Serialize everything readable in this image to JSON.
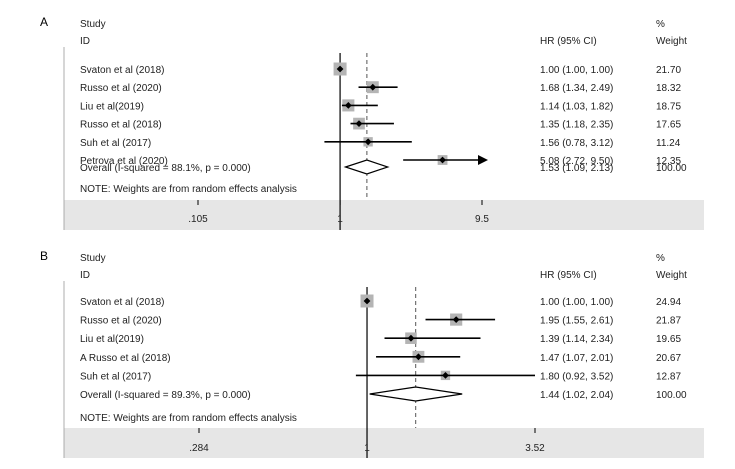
{
  "chart_data": [
    {
      "type": "forest",
      "panel_label": "A",
      "header": {
        "study": "Study",
        "id": "ID",
        "hr": "HR (95% CI)",
        "pct": "%",
        "weight": "Weight"
      },
      "x_scale": "log",
      "xlim": [
        0.105,
        9.5
      ],
      "xticks": [
        {
          "value": 0.105,
          "label": ".105"
        },
        {
          "value": 1,
          "label": "1"
        },
        {
          "value": 9.5,
          "label": "9.5"
        }
      ],
      "null_line": 1,
      "summary_line": 1.53,
      "studies": [
        {
          "name": "Svaton et al (2018)",
          "hr": 1.0,
          "lo": 1.0,
          "hi": 1.0,
          "ci_text": "1.00 (1.00, 1.00)",
          "weight": 21.7,
          "weight_text": "21.70",
          "arrow": false
        },
        {
          "name": "Russo et al (2020)",
          "hr": 1.68,
          "lo": 1.34,
          "hi": 2.49,
          "ci_text": "1.68 (1.34, 2.49)",
          "weight": 18.32,
          "weight_text": "18.32",
          "arrow": false
        },
        {
          "name": "Liu et al(2019)",
          "hr": 1.14,
          "lo": 1.03,
          "hi": 1.82,
          "ci_text": "1.14 (1.03, 1.82)",
          "weight": 18.75,
          "weight_text": "18.75",
          "arrow": false
        },
        {
          "name": "Russo et al (2018)",
          "hr": 1.35,
          "lo": 1.18,
          "hi": 2.35,
          "ci_text": "1.35 (1.18, 2.35)",
          "weight": 17.65,
          "weight_text": "17.65",
          "arrow": false
        },
        {
          "name": "Suh et al (2017)",
          "hr": 1.56,
          "lo": 0.78,
          "hi": 3.12,
          "ci_text": "1.56 (0.78, 3.12)",
          "weight": 11.24,
          "weight_text": "11.24",
          "arrow": false
        },
        {
          "name": "Petrova et al (2020)",
          "hr": 5.08,
          "lo": 2.72,
          "hi": 9.5,
          "ci_text": "5.08 (2.72, 9.50)",
          "weight": 12.35,
          "weight_text": "12.35",
          "arrow": true
        }
      ],
      "overall": {
        "label": "Overall  (I-squared = 88.1%, p = 0.000)",
        "hr": 1.53,
        "lo": 1.09,
        "hi": 2.13,
        "ci_text": "1.53 (1.09, 2.13)",
        "weight_text": "100.00"
      },
      "note": "NOTE: Weights are from random effects analysis"
    },
    {
      "type": "forest",
      "panel_label": "B",
      "header": {
        "study": "Study",
        "id": "ID",
        "hr": "HR (95% CI)",
        "pct": "%",
        "weight": "Weight"
      },
      "x_scale": "log",
      "xlim": [
        0.284,
        3.52
      ],
      "xticks": [
        {
          "value": 0.284,
          "label": ".284"
        },
        {
          "value": 1,
          "label": "1"
        },
        {
          "value": 3.52,
          "label": "3.52"
        }
      ],
      "null_line": 1,
      "summary_line": 1.44,
      "studies": [
        {
          "name": "Svaton et al (2018)",
          "hr": 1.0,
          "lo": 1.0,
          "hi": 1.0,
          "ci_text": "1.00 (1.00, 1.00)",
          "weight": 24.94,
          "weight_text": "24.94",
          "arrow": false
        },
        {
          "name": "Russo et al (2020)",
          "hr": 1.95,
          "lo": 1.55,
          "hi": 2.61,
          "ci_text": "1.95 (1.55, 2.61)",
          "weight": 21.87,
          "weight_text": "21.87",
          "arrow": false
        },
        {
          "name": "Liu et al(2019)",
          "hr": 1.39,
          "lo": 1.14,
          "hi": 2.34,
          "ci_text": "1.39 (1.14, 2.34)",
          "weight": 19.65,
          "weight_text": "19.65",
          "arrow": false
        },
        {
          "name": "A Russo et al (2018)",
          "hr": 1.47,
          "lo": 1.07,
          "hi": 2.01,
          "ci_text": "1.47 (1.07, 2.01)",
          "weight": 20.67,
          "weight_text": "20.67",
          "arrow": false
        },
        {
          "name": "Suh et al (2017)",
          "hr": 1.8,
          "lo": 0.92,
          "hi": 3.52,
          "ci_text": "1.80 (0.92, 3.52)",
          "weight": 12.87,
          "weight_text": "12.87",
          "arrow": false
        }
      ],
      "overall": {
        "label": "Overall  (I-squared = 89.3%, p = 0.000)",
        "hr": 1.44,
        "lo": 1.02,
        "hi": 2.04,
        "ci_text": "1.44 (1.02, 2.04)",
        "weight_text": "100.00"
      },
      "note": "NOTE: Weights are from random effects analysis"
    }
  ],
  "colors": {
    "axis_band": "#e6e6e6",
    "weight_box": "#b4b4b4",
    "ink": "#000000",
    "text": "#222222"
  }
}
